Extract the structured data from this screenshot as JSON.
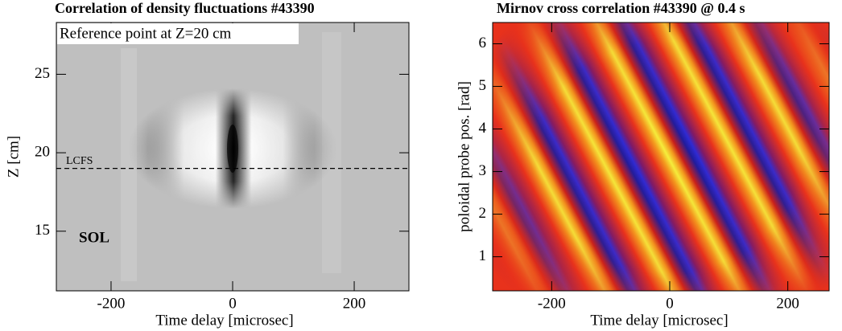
{
  "chart_data": [
    {
      "type": "contour",
      "title": "Correlation of density fluctuations #43390",
      "xlabel": "Time delay [microsec]",
      "ylabel": "Z [cm]",
      "xlim": [
        -290,
        290
      ],
      "xticks": [
        -200,
        0,
        200
      ],
      "ylim": [
        11.2,
        28.3
      ],
      "yticks": [
        15,
        20,
        25
      ],
      "annotations": {
        "reference": "Reference point at Z=20 cm",
        "lcfs_label": "LCFS",
        "lcfs_z": 19,
        "sol": "SOL"
      }
    },
    {
      "type": "contour",
      "title": "Mirnov cross correlation #43390 @ 0.4 s",
      "xlabel": "Time delay [microsec]",
      "ylabel": "poloidal probe pos. [rad]",
      "xlim": [
        -300,
        270
      ],
      "xticks": [
        -200,
        0,
        200
      ],
      "ylim": [
        0.2,
        6.5
      ],
      "yticks": [
        1,
        2,
        3,
        4,
        5,
        6
      ]
    }
  ]
}
